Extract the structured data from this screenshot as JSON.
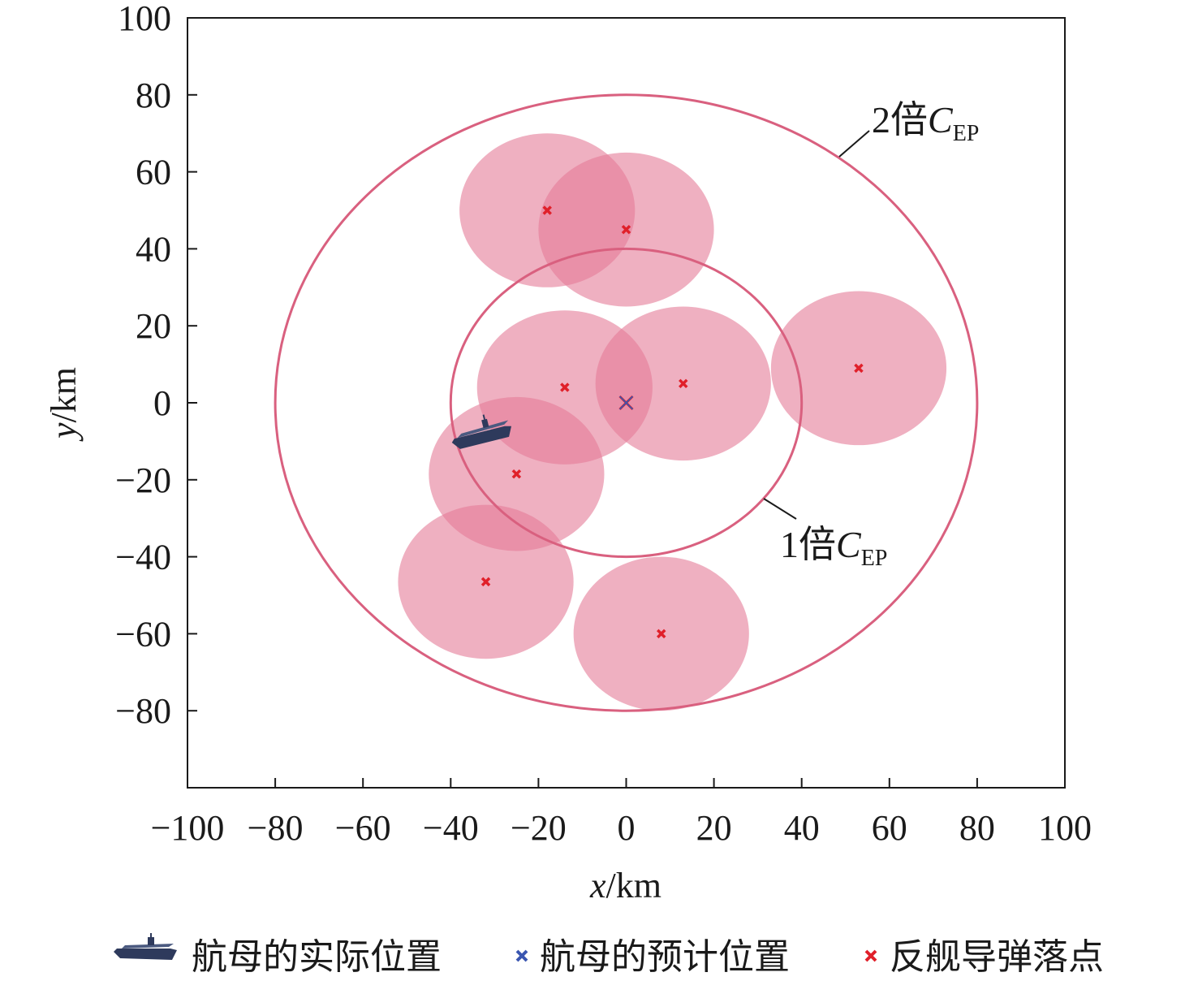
{
  "chart_data": {
    "type": "scatter",
    "xlabel_var": "x",
    "xlabel_unit": "/km",
    "ylabel_var": "y",
    "ylabel_unit": "/km",
    "xlim": [
      -100,
      100
    ],
    "ylim": [
      -100,
      100
    ],
    "x_ticks": [
      "−100",
      "−80",
      "−60",
      "−40",
      "−20",
      "0",
      "20",
      "40",
      "60",
      "80",
      "100"
    ],
    "x_tick_values": [
      -100,
      -80,
      -60,
      -40,
      -20,
      0,
      20,
      40,
      60,
      80,
      100
    ],
    "y_ticks": [
      "100",
      "80",
      "60",
      "40",
      "20",
      "0",
      "−20",
      "−40",
      "−60",
      "−80"
    ],
    "y_tick_values": [
      100,
      80,
      60,
      40,
      20,
      0,
      -20,
      -40,
      -60,
      -80
    ],
    "grid": false,
    "cep_radius_km": 40,
    "damage_radius_km": 20,
    "predicted_carrier": {
      "x": 0,
      "y": 0
    },
    "actual_carrier": {
      "x": -33,
      "y": -8
    },
    "impacts": [
      {
        "x": -18,
        "y": 50
      },
      {
        "x": 0,
        "y": 45
      },
      {
        "x": -14,
        "y": 4
      },
      {
        "x": 13,
        "y": 5
      },
      {
        "x": 53,
        "y": 9
      },
      {
        "x": -25,
        "y": -18.5
      },
      {
        "x": -32,
        "y": -46.5
      },
      {
        "x": 8,
        "y": -60
      }
    ],
    "annotations": [
      {
        "num": "2",
        "char": "倍",
        "var": "C",
        "sub": "EP",
        "radius_multiple": 2
      },
      {
        "num": "1",
        "char": "倍",
        "var": "C",
        "sub": "EP",
        "radius_multiple": 1
      }
    ],
    "legend": [
      {
        "label": "航母的实际位置",
        "marker": "carrier-icon"
      },
      {
        "label": "航母的预计位置",
        "marker": "x",
        "color": "#3a56b0"
      },
      {
        "label": "反舰导弹落点",
        "marker": "x",
        "color": "#e0202a"
      }
    ],
    "colors": {
      "zone_fill": "#e47b98",
      "ring": "#d9607f",
      "impact_marker": "#e0202a",
      "predicted_marker": "#3a56b0",
      "axis": "#1a1a1a"
    }
  }
}
